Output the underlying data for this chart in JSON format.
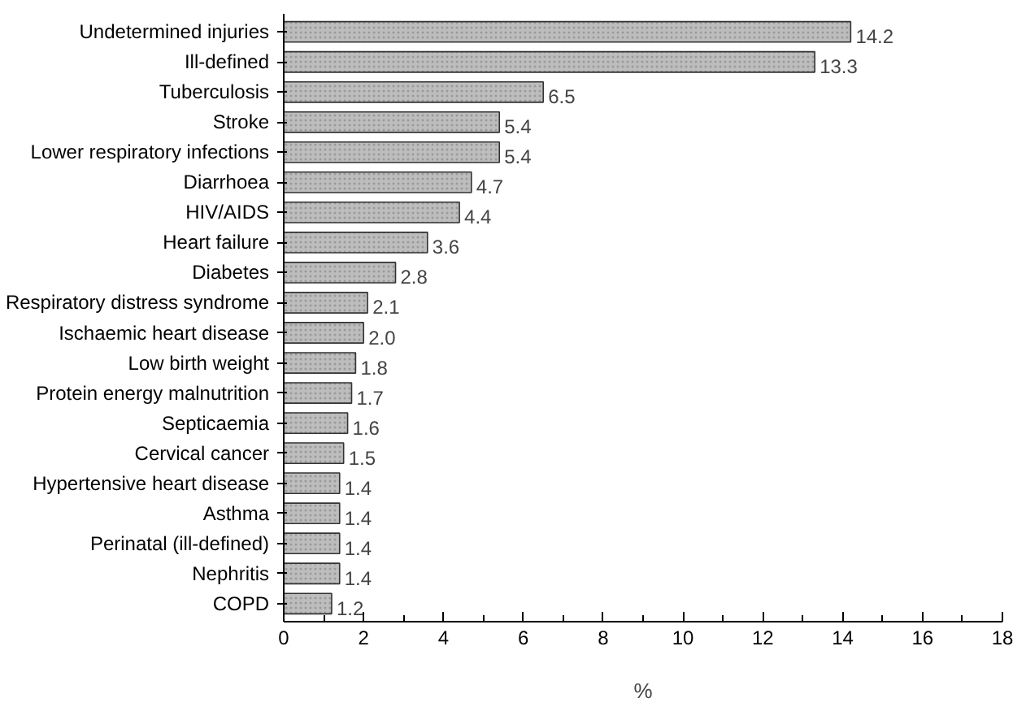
{
  "chart_data": {
    "type": "bar",
    "orientation": "horizontal",
    "xlabel": "%",
    "categories": [
      "Undetermined injuries",
      "Ill-defined",
      "Tuberculosis",
      "Stroke",
      "Lower respiratory infections",
      "Diarrhoea",
      "HIV/AIDS",
      "Heart failure",
      "Diabetes",
      "Respiratory distress syndrome",
      "Ischaemic heart disease",
      "Low birth weight",
      "Protein energy malnutrition",
      "Septicaemia",
      "Cervical cancer",
      "Hypertensive heart disease",
      "Asthma",
      "Perinatal (ill-defined)",
      "Nephritis",
      "COPD"
    ],
    "values": [
      14.2,
      13.3,
      6.5,
      5.4,
      5.4,
      4.7,
      4.4,
      3.6,
      2.8,
      2.1,
      2.0,
      1.8,
      1.7,
      1.6,
      1.5,
      1.4,
      1.4,
      1.4,
      1.4,
      1.2
    ],
    "value_labels": [
      "14.2",
      "13.3",
      "6.5",
      "5.4",
      "5.4",
      "4.7",
      "4.4",
      "3.6",
      "2.8",
      "2.1",
      "2.0",
      "1.8",
      "1.7",
      "1.6",
      "1.5",
      "1.4",
      "1.4",
      "1.4",
      "1.4",
      "1.2"
    ],
    "color": "#bdbdbd",
    "xlim": [
      0,
      18
    ],
    "xticks": [
      0,
      2,
      4,
      6,
      8,
      10,
      12,
      14,
      16,
      18
    ],
    "grid": false
  }
}
